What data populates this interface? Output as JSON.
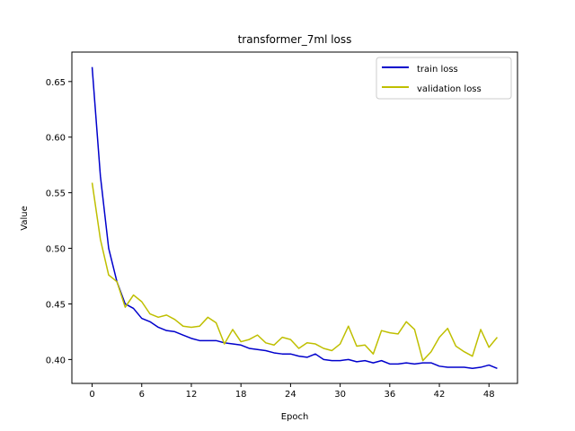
{
  "chart_data": {
    "type": "line",
    "title": "transformer_7ml loss",
    "xlabel": "Epoch",
    "ylabel": "Value",
    "xlim": [
      -2.45,
      51.45
    ],
    "ylim": [
      0.3785,
      0.6765
    ],
    "xticks": [
      0,
      6,
      12,
      18,
      24,
      30,
      36,
      42,
      48
    ],
    "xtick_labels": [
      "0",
      "6",
      "12",
      "18",
      "24",
      "30",
      "36",
      "42",
      "48"
    ],
    "yticks": [
      0.4,
      0.45,
      0.5,
      0.55,
      0.6,
      0.65
    ],
    "ytick_labels": [
      "0.40",
      "0.45",
      "0.50",
      "0.55",
      "0.60",
      "0.65"
    ],
    "grid": false,
    "legend_position": "top-right",
    "x": [
      0,
      1,
      2,
      3,
      4,
      5,
      6,
      7,
      8,
      9,
      10,
      11,
      12,
      13,
      14,
      15,
      16,
      17,
      18,
      19,
      20,
      21,
      22,
      23,
      24,
      25,
      26,
      27,
      28,
      29,
      30,
      31,
      32,
      33,
      34,
      35,
      36,
      37,
      38,
      39,
      40,
      41,
      42,
      43,
      44,
      45,
      46,
      47,
      48,
      49
    ],
    "series": [
      {
        "name": "train loss",
        "color": "#0000cc",
        "values": [
          0.663,
          0.565,
          0.5,
          0.47,
          0.45,
          0.446,
          0.437,
          0.434,
          0.429,
          0.426,
          0.425,
          0.422,
          0.419,
          0.417,
          0.417,
          0.417,
          0.415,
          0.414,
          0.413,
          0.41,
          0.409,
          0.408,
          0.406,
          0.405,
          0.405,
          0.403,
          0.402,
          0.405,
          0.4,
          0.399,
          0.399,
          0.4,
          0.398,
          0.399,
          0.397,
          0.399,
          0.396,
          0.396,
          0.397,
          0.396,
          0.397,
          0.397,
          0.394,
          0.393,
          0.393,
          0.393,
          0.392,
          0.393,
          0.395,
          0.392
        ]
      },
      {
        "name": "validation loss",
        "color": "#bfbf00",
        "values": [
          0.559,
          0.508,
          0.476,
          0.47,
          0.447,
          0.458,
          0.452,
          0.441,
          0.438,
          0.44,
          0.436,
          0.43,
          0.429,
          0.43,
          0.438,
          0.433,
          0.414,
          0.427,
          0.416,
          0.418,
          0.422,
          0.415,
          0.413,
          0.42,
          0.418,
          0.41,
          0.415,
          0.414,
          0.41,
          0.408,
          0.414,
          0.43,
          0.412,
          0.413,
          0.405,
          0.426,
          0.424,
          0.423,
          0.434,
          0.427,
          0.399,
          0.407,
          0.42,
          0.428,
          0.412,
          0.407,
          0.403,
          0.427,
          0.411,
          0.42
        ]
      }
    ]
  }
}
